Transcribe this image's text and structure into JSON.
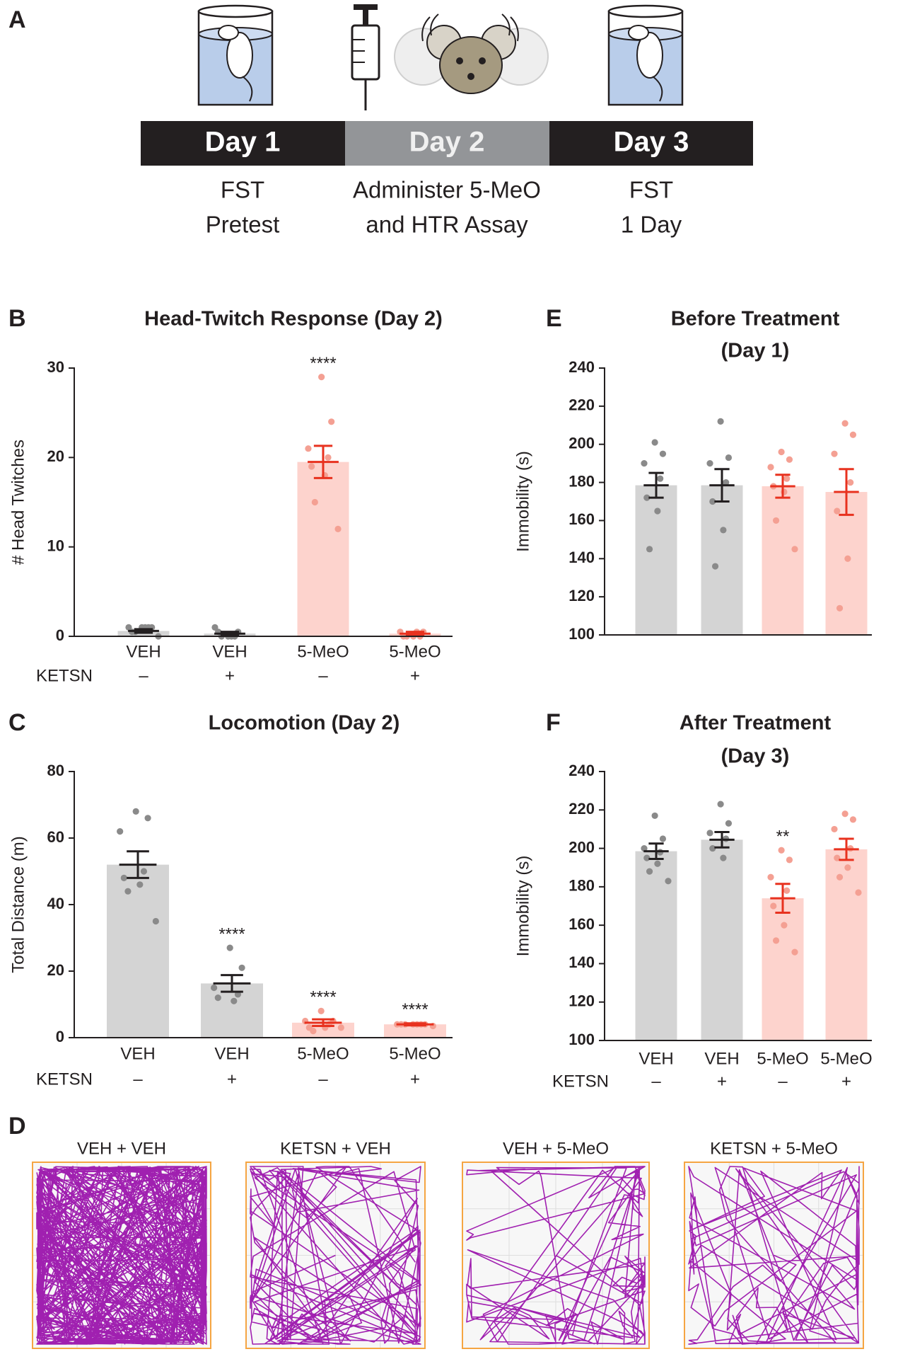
{
  "panel_labels": [
    "A",
    "B",
    "C",
    "D",
    "E",
    "F"
  ],
  "timeline": {
    "steps": [
      {
        "day": "Day 1",
        "lines": [
          "FST",
          "Pretest"
        ]
      },
      {
        "day": "Day 2",
        "lines": [
          "Administer 5-MeO",
          "and HTR Assay"
        ]
      },
      {
        "day": "Day 3",
        "lines": [
          "FST",
          "1 Day"
        ]
      }
    ]
  },
  "chart_data": [
    {
      "type": "bar",
      "title": [
        "Head-Twitch Response (Day 2)"
      ],
      "ylabel": "# Head Twitches",
      "categories": [
        "VEH",
        "VEH",
        "5-MeO",
        "5-MeO"
      ],
      "row_label": "KETSN",
      "row_values": [
        "–",
        "+",
        "–",
        "+"
      ],
      "values": [
        0.6,
        0.3,
        19.5,
        0.3
      ],
      "errors": [
        0.2,
        0.2,
        1.8,
        0.2
      ],
      "points": [
        [
          1,
          1,
          1,
          1,
          0.5,
          1,
          0.5,
          0
        ],
        [
          0,
          0.5,
          1,
          0,
          0.5,
          0,
          0
        ],
        [
          29,
          24,
          21,
          20,
          19,
          18,
          15,
          12
        ],
        [
          0,
          0.5,
          0.5,
          0,
          0,
          0.5,
          0
        ]
      ],
      "annotations": [
        null,
        null,
        "****",
        null
      ],
      "colors": [
        "#d4d4d4",
        "#d4d4d4",
        "#fdd3cd",
        "#fdd3cd"
      ],
      "error_colors": [
        "#231f20",
        "#231f20",
        "#e8321f",
        "#e8321f"
      ],
      "point_colors": [
        "#8a8a8a",
        "#8a8a8a",
        "#f4a093",
        "#f4a093"
      ],
      "ylim": [
        0,
        30
      ],
      "yticks": [
        0,
        10,
        20,
        30
      ]
    },
    {
      "type": "bar",
      "title": [
        "Locomotion (Day 2)"
      ],
      "ylabel": "Total Distance (m)",
      "categories": [
        "VEH",
        "VEH",
        "5-MeO",
        "5-MeO"
      ],
      "row_label": "KETSN",
      "row_values": [
        "–",
        "+",
        "–",
        "+"
      ],
      "values": [
        52,
        16.3,
        4.5,
        4
      ],
      "errors": [
        4,
        2.5,
        1,
        0.3
      ],
      "points": [
        [
          68,
          66,
          62,
          50,
          48,
          46,
          44,
          35
        ],
        [
          27,
          21,
          15,
          13,
          12,
          11
        ],
        [
          8,
          5,
          5,
          4,
          3,
          3,
          2,
          3
        ],
        [
          4,
          4,
          4,
          4,
          4,
          4,
          4,
          3.5
        ]
      ],
      "annotations": [
        null,
        "****",
        "****",
        "****"
      ],
      "colors": [
        "#d4d4d4",
        "#d4d4d4",
        "#fdd3cd",
        "#fdd3cd"
      ],
      "error_colors": [
        "#231f20",
        "#231f20",
        "#e8321f",
        "#e8321f"
      ],
      "point_colors": [
        "#8a8a8a",
        "#8a8a8a",
        "#f4a093",
        "#f4a093"
      ],
      "ylim": [
        0,
        80
      ],
      "yticks": [
        0,
        20,
        40,
        60,
        80
      ]
    },
    {
      "type": "bar",
      "title": [
        "Before Treatment",
        "(Day 1)"
      ],
      "ylabel": "Immobility (s)",
      "values": [
        178.5,
        178.5,
        178,
        175
      ],
      "errors": [
        6.5,
        8.5,
        6,
        12
      ],
      "points": [
        [
          201,
          195,
          190,
          182,
          172,
          165,
          145
        ],
        [
          212,
          193,
          190,
          180,
          170,
          155,
          136
        ],
        [
          196,
          192,
          188,
          182,
          178,
          175,
          160,
          145
        ],
        [
          211,
          205,
          195,
          180,
          165,
          140,
          114
        ]
      ],
      "colors": [
        "#d4d4d4",
        "#d4d4d4",
        "#fdd3cd",
        "#fdd3cd"
      ],
      "error_colors": [
        "#231f20",
        "#231f20",
        "#e8321f",
        "#e8321f"
      ],
      "point_colors": [
        "#8a8a8a",
        "#8a8a8a",
        "#f4a093",
        "#f4a093"
      ],
      "ylim": [
        100,
        240
      ],
      "yticks": [
        100,
        120,
        140,
        160,
        180,
        200,
        220,
        240
      ]
    },
    {
      "type": "bar",
      "title": [
        "After Treatment",
        "(Day 3)"
      ],
      "ylabel": "Immobility (s)",
      "categories": [
        "VEH",
        "VEH",
        "5-MeO",
        "5-MeO"
      ],
      "row_label": "KETSN",
      "row_values": [
        "–",
        "+",
        "–",
        "+"
      ],
      "values": [
        198.5,
        204.5,
        174,
        199.5
      ],
      "errors": [
        4,
        4,
        7.5,
        5.5
      ],
      "points": [
        [
          217,
          205,
          200,
          198,
          195,
          192,
          188,
          183
        ],
        [
          223,
          213,
          208,
          205,
          200,
          195
        ],
        [
          199,
          194,
          185,
          178,
          170,
          160,
          152,
          146
        ],
        [
          218,
          215,
          210,
          200,
          195,
          190,
          185,
          177
        ]
      ],
      "annotations": [
        null,
        null,
        "**",
        null
      ],
      "colors": [
        "#d4d4d4",
        "#d4d4d4",
        "#fdd3cd",
        "#fdd3cd"
      ],
      "error_colors": [
        "#231f20",
        "#231f20",
        "#e8321f",
        "#e8321f"
      ],
      "point_colors": [
        "#8a8a8a",
        "#8a8a8a",
        "#f4a093",
        "#f4a093"
      ],
      "ylim": [
        100,
        240
      ],
      "yticks": [
        100,
        120,
        140,
        160,
        180,
        200,
        220,
        240
      ]
    }
  ],
  "tracks": {
    "titles": [
      "VEH + VEH",
      "KETSN + VEH",
      "VEH + 5-MeO",
      "KETSN + 5-MeO"
    ],
    "color": "#a020b0"
  }
}
